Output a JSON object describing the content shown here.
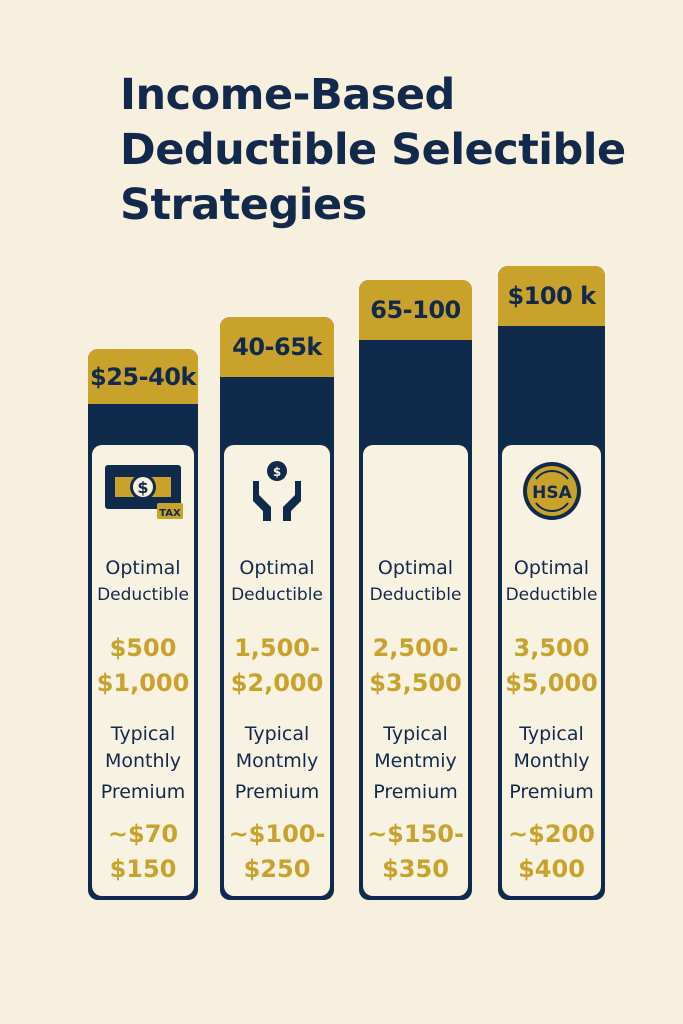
{
  "title": {
    "lines": [
      "Income-Based",
      "Deductible Selectible",
      "Strategies"
    ]
  },
  "colors": {
    "background": "#f8f0de",
    "navy": "#0f2a4a",
    "gold": "#c9a22c"
  },
  "columns": [
    {
      "range": "$25-40k",
      "icon": "money-tax-icon",
      "icon_text": "TAX",
      "deductible_label_1": "Optimal",
      "deductible_label_2": "Deductible",
      "deductible_1": "$500",
      "deductible_2": "$1,000",
      "premium_label_1": "Typical",
      "premium_label_2": "Monthly",
      "premium_label_3": "Premium",
      "premium_1": "~$70",
      "premium_2": "$150"
    },
    {
      "range": "40-65k",
      "icon": "hands-coin-icon",
      "icon_text": "$",
      "deductible_label_1": "Optimal",
      "deductible_label_2": "Deductible",
      "deductible_1": "1,500-",
      "deductible_2": "$2,000",
      "premium_label_1": "Typical",
      "premium_label_2": "Montmly",
      "premium_label_3": "Premium",
      "premium_1": "~$100-",
      "premium_2": "$250"
    },
    {
      "range": "65-100",
      "icon": "",
      "icon_text": "",
      "deductible_label_1": "Optimal",
      "deductible_label_2": "Deductible",
      "deductible_1": "2,500-",
      "deductible_2": "$3,500",
      "premium_label_1": "Typical",
      "premium_label_2": "Mentmiy",
      "premium_label_3": "Premium",
      "premium_1": "~$150-",
      "premium_2": "$350"
    },
    {
      "range": "$100 k",
      "icon": "hsa-coin-icon",
      "icon_text": "HSA",
      "deductible_label_1": "Optimal",
      "deductible_label_2": "Deductible",
      "deductible_1": "3,500",
      "deductible_2": "$5,000",
      "premium_label_1": "Typical",
      "premium_label_2": "Monthly",
      "premium_label_3": "Premium",
      "premium_1": "~$200",
      "premium_2": "$400"
    }
  ]
}
